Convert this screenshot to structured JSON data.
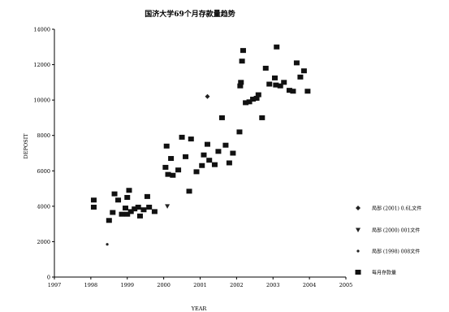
{
  "chart_data": {
    "type": "scatter",
    "title": "国济大学69个月存款量趋势",
    "xlabel": "YEAR",
    "ylabel": "DEPOSIT",
    "xlim": [
      1997,
      2005
    ],
    "ylim": [
      0,
      14000
    ],
    "x_ticks": [
      1997,
      1998,
      1999,
      2000,
      2001,
      2002,
      2003,
      2004,
      2005
    ],
    "y_ticks": [
      0,
      2000,
      4000,
      6000,
      8000,
      10000,
      12000,
      14000
    ],
    "grid": false,
    "legend_position": "right",
    "series": [
      {
        "name": "局部 (2001) 0.6L文件",
        "marker": "diamond",
        "color": "#222222",
        "points": [
          [
            2001.2,
            10200
          ]
        ]
      },
      {
        "name": "局部 (2000) 001文件",
        "marker": "triangle-down",
        "color": "#222222",
        "points": [
          [
            2000.1,
            4000
          ]
        ]
      },
      {
        "name": "局部 (1998) 008文件",
        "marker": "dot",
        "color": "#222222",
        "points": [
          [
            1998.45,
            1850
          ]
        ]
      },
      {
        "name": "每月存款量",
        "marker": "square",
        "color": "#111111",
        "points": [
          [
            1998.08,
            4350
          ],
          [
            1998.08,
            3950
          ],
          [
            1998.5,
            3200
          ],
          [
            1998.6,
            3650
          ],
          [
            1998.65,
            4700
          ],
          [
            1998.75,
            4350
          ],
          [
            1998.85,
            3550
          ],
          [
            1998.95,
            3900
          ],
          [
            1999.0,
            3550
          ],
          [
            1999.0,
            4500
          ],
          [
            1999.05,
            4900
          ],
          [
            1999.1,
            3700
          ],
          [
            1999.2,
            3850
          ],
          [
            1999.3,
            3950
          ],
          [
            1999.35,
            3450
          ],
          [
            1999.45,
            3800
          ],
          [
            1999.55,
            4550
          ],
          [
            1999.6,
            3950
          ],
          [
            1999.75,
            3700
          ],
          [
            2000.05,
            6200
          ],
          [
            2000.08,
            7400
          ],
          [
            2000.12,
            5800
          ],
          [
            2000.2,
            6700
          ],
          [
            2000.25,
            5750
          ],
          [
            2000.4,
            6050
          ],
          [
            2000.5,
            7900
          ],
          [
            2000.6,
            6800
          ],
          [
            2000.7,
            4850
          ],
          [
            2000.75,
            7800
          ],
          [
            2000.9,
            5950
          ],
          [
            2001.05,
            6300
          ],
          [
            2001.1,
            6900
          ],
          [
            2001.2,
            7500
          ],
          [
            2001.25,
            6600
          ],
          [
            2001.4,
            6350
          ],
          [
            2001.5,
            7100
          ],
          [
            2001.6,
            9000
          ],
          [
            2001.7,
            7450
          ],
          [
            2001.8,
            6450
          ],
          [
            2001.9,
            7000
          ],
          [
            2002.08,
            8200
          ],
          [
            2002.1,
            10800
          ],
          [
            2002.12,
            11000
          ],
          [
            2002.15,
            12200
          ],
          [
            2002.18,
            12800
          ],
          [
            2002.25,
            9850
          ],
          [
            2002.35,
            9900
          ],
          [
            2002.45,
            10050
          ],
          [
            2002.55,
            10100
          ],
          [
            2002.6,
            10300
          ],
          [
            2002.7,
            9000
          ],
          [
            2002.8,
            11800
          ],
          [
            2002.9,
            10900
          ],
          [
            2003.05,
            11250
          ],
          [
            2003.08,
            10850
          ],
          [
            2003.1,
            13000
          ],
          [
            2003.2,
            10800
          ],
          [
            2003.3,
            11000
          ],
          [
            2003.45,
            10550
          ],
          [
            2003.55,
            10500
          ],
          [
            2003.65,
            12100
          ],
          [
            2003.75,
            11300
          ],
          [
            2003.85,
            11650
          ],
          [
            2003.95,
            10500
          ]
        ]
      }
    ]
  }
}
